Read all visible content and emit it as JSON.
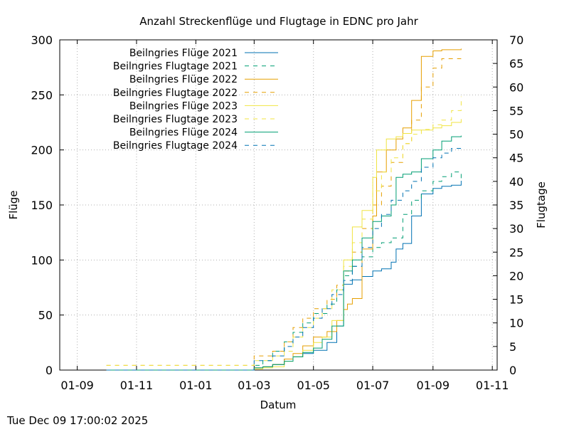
{
  "chart_data": {
    "type": "line",
    "title": "Anzahl Streckenflüge und Flugtage in EDNC pro Jahr",
    "xlabel": "Datum",
    "ylabel": "Flüge",
    "y2label": "Flugtage",
    "timestamp": "Tue Dec 09 17:00:02 2025",
    "x_domain": [
      "2023-08-14",
      "2024-11-06"
    ],
    "xlim": [
      "2023-09-01",
      "2024-11-01"
    ],
    "ylim": [
      0,
      300
    ],
    "y2lim": [
      0,
      70
    ],
    "grid": true,
    "legend_position": "top-left",
    "x_tick_labels": [
      "01-09",
      "01-11",
      "01-01",
      "01-03",
      "01-05",
      "01-07",
      "01-09",
      "01-11"
    ],
    "x_tick_dates": [
      "2023-09-01",
      "2023-11-01",
      "2024-01-01",
      "2024-03-01",
      "2024-05-01",
      "2024-07-01",
      "2024-09-01",
      "2024-11-01"
    ],
    "y_ticks": [
      "0",
      "50",
      "100",
      "150",
      "200",
      "250",
      "300"
    ],
    "y2_ticks": [
      "0",
      "5",
      "10",
      "15",
      "20",
      "25",
      "30",
      "35",
      "40",
      "45",
      "50",
      "55",
      "60",
      "65",
      "70"
    ],
    "series": [
      {
        "name": "Beilngries Flüge 2021",
        "axis": "y",
        "dash": false,
        "color": "#0072b2",
        "x": [
          "2023-10-01",
          "2024-02-28",
          "2024-03-01",
          "2024-03-10",
          "2024-03-20",
          "2024-04-01",
          "2024-04-10",
          "2024-04-20",
          "2024-05-01",
          "2024-05-15",
          "2024-05-25",
          "2024-06-01",
          "2024-06-10",
          "2024-06-20",
          "2024-07-01",
          "2024-07-10",
          "2024-07-20",
          "2024-07-25",
          "2024-08-01",
          "2024-08-10",
          "2024-08-20",
          "2024-09-01",
          "2024-09-10",
          "2024-09-20",
          "2024-09-30"
        ],
        "y": [
          0,
          0,
          2,
          3,
          5,
          10,
          12,
          15,
          18,
          25,
          40,
          78,
          82,
          85,
          90,
          92,
          98,
          110,
          115,
          140,
          160,
          165,
          167,
          168,
          172
        ]
      },
      {
        "name": "Beilngries Flugtage 2021",
        "axis": "y2",
        "dash": true,
        "color": "#009e73",
        "x": [
          "2023-10-01",
          "2024-02-28",
          "2024-03-01",
          "2024-03-10",
          "2024-03-20",
          "2024-04-01",
          "2024-04-10",
          "2024-04-20",
          "2024-05-01",
          "2024-05-15",
          "2024-05-25",
          "2024-06-01",
          "2024-06-10",
          "2024-06-20",
          "2024-07-01",
          "2024-07-10",
          "2024-07-20",
          "2024-08-01",
          "2024-08-10",
          "2024-08-20",
          "2024-09-01",
          "2024-09-10",
          "2024-09-20",
          "2024-09-30"
        ],
        "y": [
          0,
          0,
          1,
          2,
          4,
          6,
          8,
          10,
          12,
          14,
          17,
          20,
          22,
          24,
          26,
          27,
          28,
          33,
          36,
          38,
          40,
          41,
          42,
          40
        ]
      },
      {
        "name": "Beilngries Flüge 2022",
        "axis": "y",
        "dash": false,
        "color": "#e69f00",
        "x": [
          "2023-10-01",
          "2024-02-28",
          "2024-03-01",
          "2024-03-10",
          "2024-03-20",
          "2024-04-01",
          "2024-04-10",
          "2024-04-20",
          "2024-05-01",
          "2024-05-15",
          "2024-05-25",
          "2024-06-01",
          "2024-06-05",
          "2024-06-10",
          "2024-06-20",
          "2024-07-01",
          "2024-07-05",
          "2024-07-15",
          "2024-07-25",
          "2024-08-01",
          "2024-08-10",
          "2024-08-20",
          "2024-09-01",
          "2024-09-10",
          "2024-09-30"
        ],
        "y": [
          0,
          0,
          2,
          3,
          5,
          10,
          15,
          22,
          30,
          35,
          45,
          55,
          60,
          65,
          110,
          140,
          180,
          200,
          210,
          220,
          245,
          285,
          290,
          291,
          292
        ]
      },
      {
        "name": "Beilngries Flugtage 2022",
        "axis": "y2",
        "dash": true,
        "color": "#e69f00",
        "x": [
          "2023-10-01",
          "2024-02-28",
          "2024-03-01",
          "2024-03-10",
          "2024-03-20",
          "2024-04-01",
          "2024-04-10",
          "2024-04-20",
          "2024-05-01",
          "2024-05-15",
          "2024-05-25",
          "2024-06-01",
          "2024-06-10",
          "2024-06-20",
          "2024-07-01",
          "2024-07-10",
          "2024-07-20",
          "2024-08-01",
          "2024-08-10",
          "2024-08-20",
          "2024-09-01",
          "2024-09-10",
          "2024-09-30"
        ],
        "y": [
          1,
          1,
          3,
          3,
          4,
          6,
          9,
          11,
          13,
          15,
          18,
          21,
          25,
          30,
          35,
          39,
          44,
          48,
          53,
          60,
          64,
          66,
          66
        ]
      },
      {
        "name": "Beilngries Flüge 2023",
        "axis": "y",
        "dash": false,
        "color": "#f0e442",
        "x": [
          "2023-10-01",
          "2024-02-28",
          "2024-03-01",
          "2024-03-10",
          "2024-03-20",
          "2024-04-01",
          "2024-04-10",
          "2024-04-20",
          "2024-05-01",
          "2024-05-10",
          "2024-05-20",
          "2024-06-01",
          "2024-06-10",
          "2024-06-20",
          "2024-07-01",
          "2024-07-05",
          "2024-07-15",
          "2024-07-25",
          "2024-08-01",
          "2024-08-10",
          "2024-08-20",
          "2024-09-01",
          "2024-09-10",
          "2024-09-20",
          "2024-09-30"
        ],
        "y": [
          0,
          0,
          1,
          2,
          3,
          8,
          12,
          18,
          25,
          30,
          45,
          100,
          130,
          145,
          175,
          200,
          210,
          212,
          215,
          218,
          218,
          220,
          222,
          225,
          228
        ]
      },
      {
        "name": "Beilngries Flugtage 2023",
        "axis": "y2",
        "dash": true,
        "color": "#f0e442",
        "x": [
          "2023-10-01",
          "2024-02-28",
          "2024-03-01",
          "2024-03-10",
          "2024-03-20",
          "2024-04-01",
          "2024-04-10",
          "2024-04-20",
          "2024-05-01",
          "2024-05-10",
          "2024-05-20",
          "2024-06-01",
          "2024-06-10",
          "2024-06-20",
          "2024-07-01",
          "2024-07-10",
          "2024-07-20",
          "2024-08-01",
          "2024-08-10",
          "2024-08-20",
          "2024-09-01",
          "2024-09-10",
          "2024-09-20",
          "2024-09-30"
        ],
        "y": [
          1,
          1,
          2,
          2,
          3,
          4,
          7,
          9,
          11,
          13,
          17,
          22,
          27,
          32,
          38,
          42,
          45,
          48,
          50,
          51,
          52,
          53,
          55,
          58
        ]
      },
      {
        "name": "Beilngries Flüge 2024",
        "axis": "y",
        "dash": false,
        "color": "#009e73",
        "x": [
          "2023-10-01",
          "2024-02-28",
          "2024-03-01",
          "2024-03-10",
          "2024-03-20",
          "2024-04-01",
          "2024-04-10",
          "2024-04-20",
          "2024-05-01",
          "2024-05-10",
          "2024-05-20",
          "2024-06-01",
          "2024-06-10",
          "2024-06-20",
          "2024-07-01",
          "2024-07-10",
          "2024-07-20",
          "2024-07-25",
          "2024-08-01",
          "2024-08-10",
          "2024-08-20",
          "2024-09-01",
          "2024-09-10",
          "2024-09-20",
          "2024-09-30"
        ],
        "y": [
          0,
          0,
          2,
          3,
          5,
          8,
          12,
          16,
          20,
          28,
          40,
          90,
          100,
          120,
          135,
          140,
          150,
          175,
          178,
          180,
          192,
          200,
          208,
          212,
          213
        ]
      },
      {
        "name": "Beilngries Flugtage 2024",
        "axis": "y2",
        "dash": true,
        "color": "#0072b2",
        "x": [
          "2023-10-01",
          "2024-02-28",
          "2024-03-01",
          "2024-03-10",
          "2024-03-20",
          "2024-04-01",
          "2024-04-10",
          "2024-04-20",
          "2024-05-01",
          "2024-05-10",
          "2024-05-20",
          "2024-06-01",
          "2024-06-10",
          "2024-06-20",
          "2024-07-01",
          "2024-07-10",
          "2024-07-20",
          "2024-08-01",
          "2024-08-10",
          "2024-08-20",
          "2024-09-01",
          "2024-09-10",
          "2024-09-20",
          "2024-09-30"
        ],
        "y": [
          0,
          0,
          2,
          2,
          3,
          5,
          7,
          9,
          11,
          13,
          16,
          19,
          22,
          26,
          30,
          33,
          36,
          38,
          40,
          43,
          45,
          46,
          47,
          47
        ]
      }
    ]
  }
}
